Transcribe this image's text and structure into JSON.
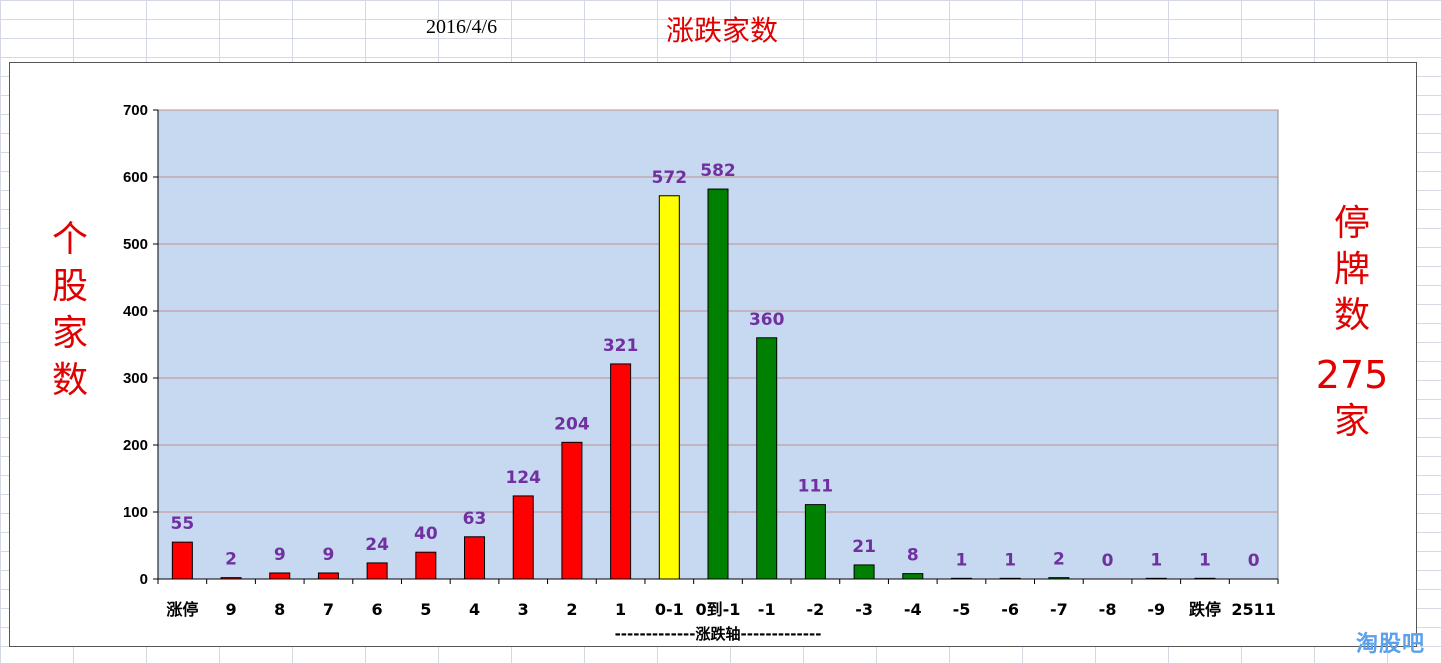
{
  "header": {
    "date": "2016/4/6",
    "title": "涨跌家数"
  },
  "side": {
    "left_chars": [
      "个",
      "股",
      "家",
      "数"
    ],
    "right_chars_top": [
      "停",
      "牌",
      "数"
    ],
    "suspended_count": "275",
    "right_char_bottom": "家"
  },
  "watermark": "淘股吧",
  "chart_data": {
    "type": "bar",
    "title": "",
    "xlabel": "-------------涨跌轴-------------",
    "ylabel": "",
    "ylim": [
      0,
      700
    ],
    "yticks": [
      0,
      100,
      200,
      300,
      400,
      500,
      600,
      700
    ],
    "grid": true,
    "categories": [
      "涨停",
      "9",
      "8",
      "7",
      "6",
      "5",
      "4",
      "3",
      "2",
      "1",
      "0-1",
      "0到-1",
      "-1",
      "-2",
      "-3",
      "-4",
      "-5",
      "-6",
      "-7",
      "-8",
      "-9",
      "跌停",
      "2511"
    ],
    "values": [
      55,
      2,
      9,
      9,
      24,
      40,
      63,
      124,
      204,
      321,
      572,
      582,
      360,
      111,
      21,
      8,
      1,
      1,
      2,
      0,
      1,
      1,
      0
    ],
    "bar_colors": [
      "#ff0000",
      "#ff0000",
      "#ff0000",
      "#ff0000",
      "#ff0000",
      "#ff0000",
      "#ff0000",
      "#ff0000",
      "#ff0000",
      "#ff0000",
      "#ffff00",
      "#008000",
      "#008000",
      "#008000",
      "#008000",
      "#008000",
      "#008000",
      "#008000",
      "#008000",
      "#008000",
      "#008000",
      "#008000",
      "#008000"
    ],
    "plot_background": "#c6d9f1",
    "gridline_color": "#c09090",
    "data_label_color": "#7030a0"
  }
}
